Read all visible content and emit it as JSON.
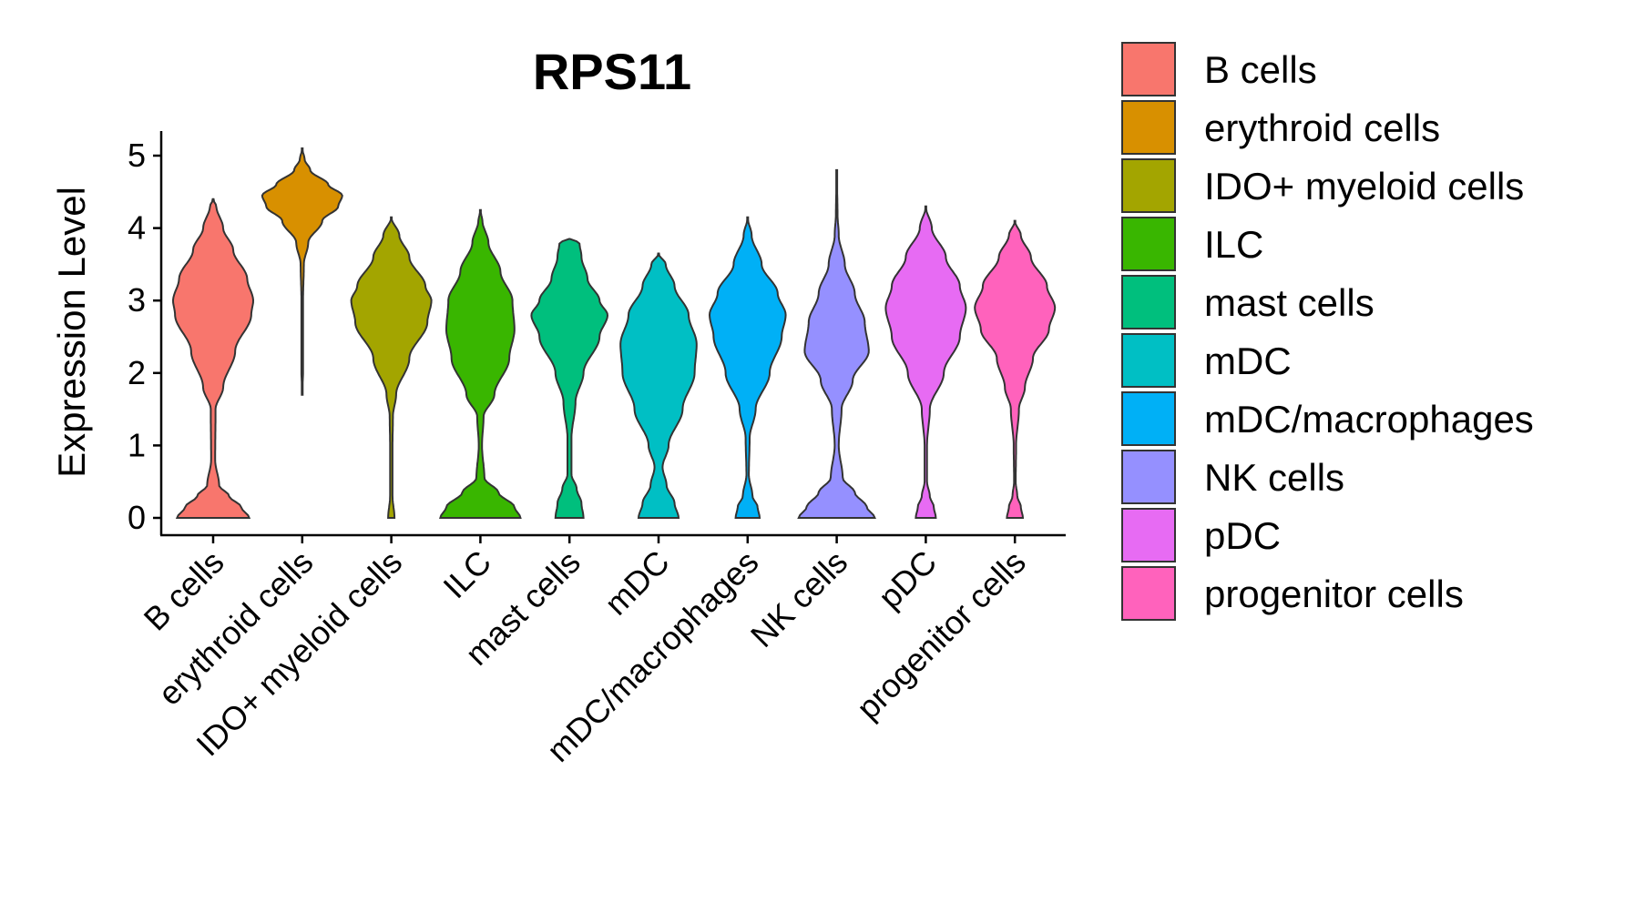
{
  "chart_data": {
    "type": "violin",
    "title": "RPS11",
    "xlabel": "",
    "ylabel": "Expression Level",
    "ylim": [
      -0.25,
      5.35
    ],
    "yticks": [
      0,
      1,
      2,
      3,
      4,
      5
    ],
    "legend_position": "right",
    "categories": [
      "B cells",
      "erythroid cells",
      "IDO+ myeloid cells",
      "ILC",
      "mast cells",
      "mDC",
      "mDC/macrophages",
      "NK cells",
      "pDC",
      "progenitor cells"
    ],
    "colors": [
      "#F8766D",
      "#D89000",
      "#A3A500",
      "#39B600",
      "#00BF7D",
      "#00BFC4",
      "#00B0F6",
      "#9590FF",
      "#E76BF3",
      "#FF62BC"
    ],
    "series": [
      {
        "name": "B cells",
        "min": 0,
        "max": 4.4,
        "profile": [
          [
            0,
            0.9
          ],
          [
            0.15,
            0.7
          ],
          [
            0.3,
            0.4
          ],
          [
            0.45,
            0.15
          ],
          [
            0.8,
            0.05
          ],
          [
            1.5,
            0.06
          ],
          [
            1.8,
            0.25
          ],
          [
            2.3,
            0.55
          ],
          [
            2.8,
            0.95
          ],
          [
            3.0,
            1.0
          ],
          [
            3.3,
            0.85
          ],
          [
            3.7,
            0.5
          ],
          [
            4.0,
            0.25
          ],
          [
            4.3,
            0.08
          ],
          [
            4.4,
            0
          ]
        ]
      },
      {
        "name": "erythroid cells",
        "min": 1.7,
        "max": 5.1,
        "profile": [
          [
            1.7,
            0
          ],
          [
            2.0,
            0.02
          ],
          [
            3.0,
            0.02
          ],
          [
            3.5,
            0.04
          ],
          [
            3.8,
            0.15
          ],
          [
            4.1,
            0.5
          ],
          [
            4.3,
            0.9
          ],
          [
            4.45,
            1.0
          ],
          [
            4.6,
            0.65
          ],
          [
            4.8,
            0.2
          ],
          [
            4.95,
            0.06
          ],
          [
            5.1,
            0
          ]
        ]
      },
      {
        "name": "IDO+ myeloid cells",
        "min": 0,
        "max": 4.15,
        "profile": [
          [
            0,
            0.08
          ],
          [
            0.3,
            0.03
          ],
          [
            1.0,
            0.03
          ],
          [
            1.4,
            0.04
          ],
          [
            1.7,
            0.12
          ],
          [
            2.2,
            0.45
          ],
          [
            2.7,
            0.9
          ],
          [
            3.0,
            1.0
          ],
          [
            3.2,
            0.85
          ],
          [
            3.6,
            0.45
          ],
          [
            3.9,
            0.2
          ],
          [
            4.15,
            0
          ]
        ]
      },
      {
        "name": "ILC",
        "min": 0,
        "max": 4.25,
        "profile": [
          [
            0,
            1.0
          ],
          [
            0.15,
            0.85
          ],
          [
            0.35,
            0.45
          ],
          [
            0.55,
            0.1
          ],
          [
            1.0,
            0.04
          ],
          [
            1.4,
            0.08
          ],
          [
            1.7,
            0.35
          ],
          [
            2.2,
            0.72
          ],
          [
            2.6,
            0.85
          ],
          [
            3.0,
            0.8
          ],
          [
            3.4,
            0.5
          ],
          [
            3.8,
            0.2
          ],
          [
            4.1,
            0.05
          ],
          [
            4.25,
            0
          ]
        ]
      },
      {
        "name": "mast cells",
        "min": 0,
        "max": 3.85,
        "profile": [
          [
            0,
            0.35
          ],
          [
            0.2,
            0.3
          ],
          [
            0.4,
            0.18
          ],
          [
            0.6,
            0.05
          ],
          [
            1.1,
            0.05
          ],
          [
            1.6,
            0.15
          ],
          [
            2.0,
            0.35
          ],
          [
            2.5,
            0.75
          ],
          [
            2.8,
            0.95
          ],
          [
            3.0,
            0.75
          ],
          [
            3.3,
            0.45
          ],
          [
            3.6,
            0.3
          ],
          [
            3.8,
            0.25
          ],
          [
            3.85,
            0
          ]
        ]
      },
      {
        "name": "mDC",
        "min": 0,
        "max": 3.65,
        "profile": [
          [
            0,
            0.5
          ],
          [
            0.2,
            0.4
          ],
          [
            0.45,
            0.2
          ],
          [
            0.7,
            0.1
          ],
          [
            1.0,
            0.25
          ],
          [
            1.5,
            0.6
          ],
          [
            2.0,
            0.9
          ],
          [
            2.4,
            0.95
          ],
          [
            2.8,
            0.75
          ],
          [
            3.2,
            0.4
          ],
          [
            3.5,
            0.18
          ],
          [
            3.65,
            0
          ]
        ]
      },
      {
        "name": "mDC/macrophages",
        "min": 0,
        "max": 4.15,
        "profile": [
          [
            0,
            0.3
          ],
          [
            0.15,
            0.25
          ],
          [
            0.3,
            0.12
          ],
          [
            0.6,
            0.03
          ],
          [
            1.1,
            0.05
          ],
          [
            1.5,
            0.2
          ],
          [
            2.0,
            0.55
          ],
          [
            2.5,
            0.85
          ],
          [
            2.8,
            0.95
          ],
          [
            3.1,
            0.75
          ],
          [
            3.5,
            0.35
          ],
          [
            3.9,
            0.1
          ],
          [
            4.15,
            0
          ]
        ]
      },
      {
        "name": "NK cells",
        "min": 0,
        "max": 4.8,
        "profile": [
          [
            0,
            0.95
          ],
          [
            0.15,
            0.75
          ],
          [
            0.35,
            0.45
          ],
          [
            0.55,
            0.15
          ],
          [
            1.0,
            0.05
          ],
          [
            1.5,
            0.12
          ],
          [
            1.9,
            0.4
          ],
          [
            2.3,
            0.8
          ],
          [
            2.7,
            0.7
          ],
          [
            3.1,
            0.45
          ],
          [
            3.5,
            0.2
          ],
          [
            3.9,
            0.05
          ],
          [
            4.2,
            0.02
          ],
          [
            4.8,
            0
          ]
        ]
      },
      {
        "name": "pDC",
        "min": 0,
        "max": 4.3,
        "profile": [
          [
            0,
            0.25
          ],
          [
            0.15,
            0.2
          ],
          [
            0.3,
            0.1
          ],
          [
            0.5,
            0.03
          ],
          [
            1.0,
            0.03
          ],
          [
            1.5,
            0.1
          ],
          [
            2.0,
            0.45
          ],
          [
            2.5,
            0.85
          ],
          [
            2.9,
            1.0
          ],
          [
            3.2,
            0.85
          ],
          [
            3.6,
            0.5
          ],
          [
            4.0,
            0.15
          ],
          [
            4.3,
            0
          ]
        ]
      },
      {
        "name": "progenitor cells",
        "min": 0,
        "max": 4.1,
        "profile": [
          [
            0,
            0.2
          ],
          [
            0.15,
            0.15
          ],
          [
            0.3,
            0.06
          ],
          [
            0.5,
            0.02
          ],
          [
            1.0,
            0.03
          ],
          [
            1.5,
            0.1
          ],
          [
            1.8,
            0.25
          ],
          [
            2.2,
            0.45
          ],
          [
            2.6,
            0.85
          ],
          [
            2.9,
            1.0
          ],
          [
            3.2,
            0.8
          ],
          [
            3.6,
            0.4
          ],
          [
            3.9,
            0.15
          ],
          [
            4.1,
            0
          ]
        ]
      }
    ],
    "legend": [
      "B cells",
      "erythroid cells",
      "IDO+ myeloid cells",
      "ILC",
      "mast cells",
      "mDC",
      "mDC/macrophages",
      "NK cells",
      "pDC",
      "progenitor cells"
    ]
  }
}
